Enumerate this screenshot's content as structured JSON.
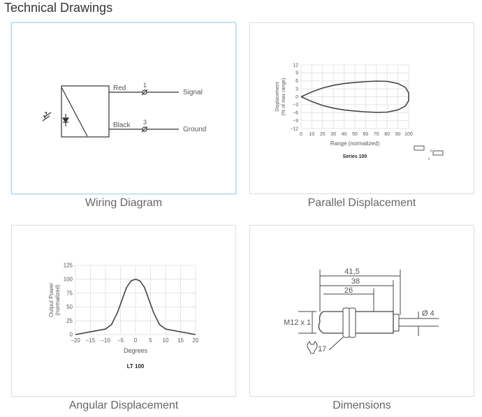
{
  "section_title": "Technical Drawings",
  "cards": [
    {
      "label": "Wiring Diagram",
      "wires": [
        {
          "color": "Red",
          "pin": "1",
          "signal": "Signal"
        },
        {
          "color": "Black",
          "pin": "3",
          "signal": "Ground"
        }
      ]
    },
    {
      "label": "Parallel Displacement"
    },
    {
      "label": "Angular Displacement"
    },
    {
      "label": "Dimensions",
      "dims": {
        "total": "41,5",
        "body": "38",
        "thread": "26",
        "thread_size": "M12 x 1",
        "cable": "Ø 4",
        "wrench": "17"
      }
    }
  ],
  "chart_data": [
    {
      "type": "line",
      "title": "Series 100",
      "xlabel": "Range (normalized)",
      "ylabel": "Displacement (% of max range)",
      "xlim": [
        0,
        100
      ],
      "ylim": [
        -12,
        12
      ],
      "grid": true,
      "xticks": [
        0,
        10,
        20,
        30,
        40,
        50,
        60,
        70,
        80,
        90,
        100
      ],
      "yticks": [
        12,
        9,
        6,
        3,
        0,
        -3,
        -6,
        -9,
        -12
      ],
      "series": [
        {
          "x": [
            0,
            10,
            20,
            30,
            40,
            50,
            60,
            70,
            80,
            90,
            97,
            100,
            100
          ],
          "y": [
            0,
            1.8,
            3.3,
            4.3,
            5,
            5.4,
            5.7,
            5.9,
            5.8,
            5,
            3.5,
            1.5,
            0
          ]
        },
        {
          "x": [
            0,
            10,
            20,
            30,
            40,
            50,
            60,
            70,
            80,
            90,
            97,
            100,
            100
          ],
          "y": [
            0,
            -1.8,
            -3.3,
            -4.3,
            -5,
            -5.4,
            -5.7,
            -5.9,
            -5.8,
            -5,
            -3.5,
            -1.5,
            0
          ]
        }
      ],
      "inset_labels": [
        "y",
        "x"
      ]
    },
    {
      "type": "line",
      "title": "LT 100",
      "xlabel": "Degrees",
      "ylabel": "Output Power (normalized)",
      "xlim": [
        -20,
        20
      ],
      "ylim": [
        0,
        125
      ],
      "grid": true,
      "xticks": [
        -20,
        -15,
        -10,
        -5,
        0,
        5,
        10,
        15,
        20
      ],
      "yticks": [
        125,
        100,
        75,
        50,
        25,
        0
      ],
      "series": [
        {
          "x": [
            -20,
            -15,
            -10,
            -8,
            -6,
            -5,
            -3,
            -1.5,
            0,
            1.5,
            3,
            5,
            6,
            8,
            10,
            15,
            20
          ],
          "y": [
            0,
            5,
            10,
            18,
            40,
            55,
            85,
            97,
            100,
            97,
            85,
            55,
            40,
            18,
            10,
            5,
            0
          ]
        }
      ]
    }
  ]
}
